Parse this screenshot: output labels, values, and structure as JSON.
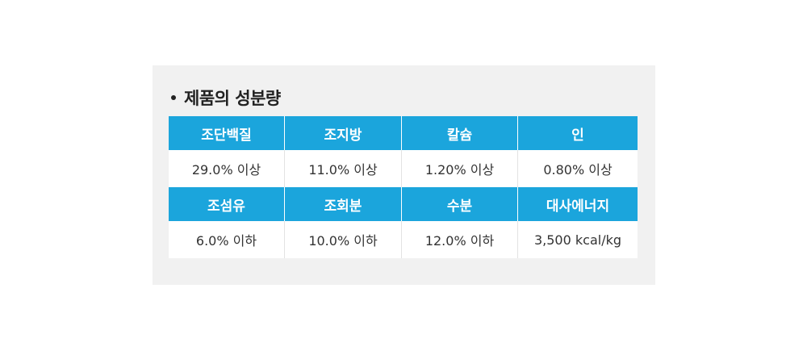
{
  "section": {
    "title": "제품의 성분량"
  },
  "table": {
    "rows": [
      {
        "headers": [
          "조단백질",
          "조지방",
          "칼슘",
          "인"
        ],
        "values": [
          "29.0% 이상",
          "11.0% 이상",
          "1.20% 이상",
          "0.80% 이상"
        ]
      },
      {
        "headers": [
          "조섬유",
          "조회분",
          "수분",
          "대사에너지"
        ],
        "values": [
          "6.0% 이하",
          "10.0% 이하",
          "12.0% 이하",
          "3,500 kcal/kg"
        ]
      }
    ]
  },
  "colors": {
    "header_background": "#1ba5dc",
    "panel_background": "#f1f1f1",
    "value_background": "#ffffff"
  }
}
